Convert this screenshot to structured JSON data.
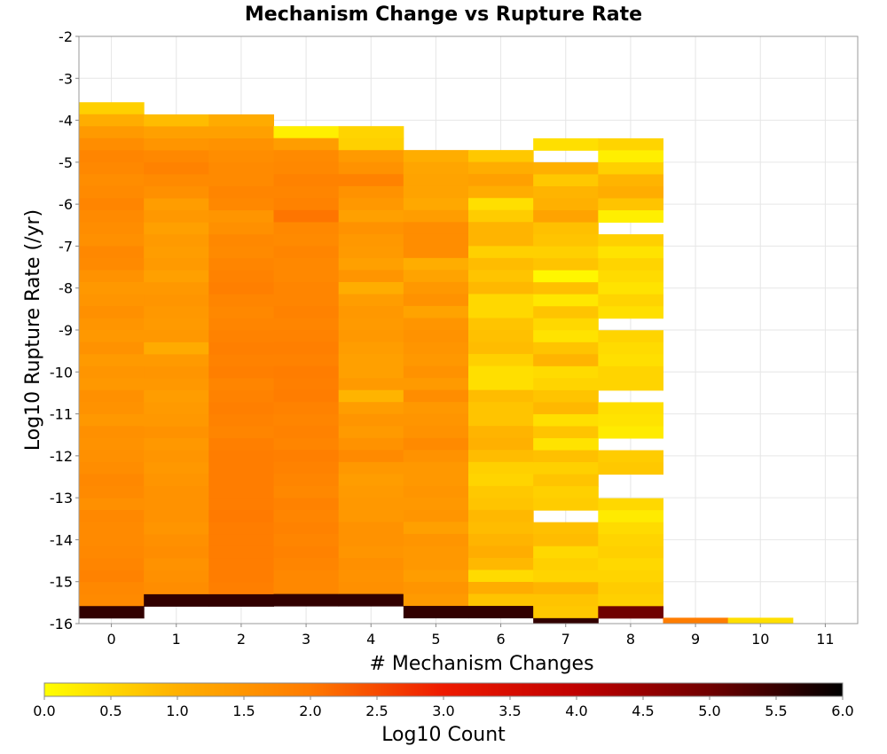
{
  "chart_data": {
    "type": "heatmap",
    "title": "Mechanism Change vs Rupture Rate",
    "xlabel": "# Mechanism Changes",
    "ylabel": "Log10 Rupture Rate (/yr)",
    "colorbar_label": "Log10 Count",
    "x_ticks": [
      "0",
      "1",
      "2",
      "3",
      "4",
      "5",
      "6",
      "7",
      "8",
      "9",
      "10",
      "11"
    ],
    "y_ticks": [
      "-2",
      "-3",
      "-4",
      "-5",
      "-6",
      "-7",
      "-8",
      "-9",
      "-10",
      "-11",
      "-12",
      "-13",
      "-14",
      "-15",
      "-16"
    ],
    "colorbar_ticks": [
      "0.0",
      "0.5",
      "1.0",
      "1.5",
      "2.0",
      "2.5",
      "3.0",
      "3.5",
      "4.0",
      "4.5",
      "5.0",
      "5.5",
      "6.0"
    ],
    "xlim": [
      -0.5,
      11.5
    ],
    "ylim": [
      -16,
      -2
    ],
    "color_range": [
      0,
      6
    ],
    "color_scale": [
      "#ffff00",
      "#ffb000",
      "#ff7a00",
      "#ee1a00",
      "#c00000",
      "#700000",
      "#000000"
    ],
    "grid": true,
    "y_bin_size": 0.286,
    "columns": [
      {
        "x": 0,
        "top": -3.57,
        "values": [
          0.6,
          1.05,
          1.4,
          1.65,
          1.8,
          1.75,
          1.65,
          1.7,
          1.8,
          1.7,
          1.65,
          1.6,
          1.75,
          1.7,
          1.55,
          1.45,
          1.5,
          1.6,
          1.5,
          1.45,
          1.55,
          1.4,
          1.5,
          1.45,
          1.6,
          1.55,
          1.45,
          1.6,
          1.55,
          1.6,
          1.65,
          1.75,
          1.7,
          1.6,
          1.75,
          1.7,
          1.7,
          1.75,
          1.8,
          1.85,
          1.75,
          1.7,
          5.55
        ]
      },
      {
        "x": 1,
        "top": -3.86,
        "values": [
          0.85,
          1.3,
          1.5,
          1.75,
          1.85,
          1.7,
          1.6,
          1.35,
          1.45,
          1.3,
          1.4,
          1.35,
          1.4,
          1.3,
          1.45,
          1.5,
          1.45,
          1.4,
          1.45,
          1.1,
          1.4,
          1.5,
          1.45,
          1.35,
          1.4,
          1.45,
          1.55,
          1.45,
          1.5,
          1.45,
          1.5,
          1.55,
          1.55,
          1.55,
          1.5,
          1.6,
          1.65,
          1.55,
          1.6,
          1.65,
          5.55
        ]
      },
      {
        "x": 2,
        "top": -3.86,
        "values": [
          1.1,
          1.3,
          1.55,
          1.65,
          1.7,
          1.7,
          1.8,
          1.75,
          1.5,
          1.6,
          1.75,
          1.7,
          1.8,
          1.85,
          1.9,
          1.8,
          1.75,
          1.8,
          1.85,
          1.9,
          1.85,
          1.9,
          1.8,
          1.85,
          1.9,
          1.85,
          1.8,
          1.9,
          1.95,
          1.95,
          1.95,
          1.95,
          1.95,
          2.0,
          1.95,
          1.95,
          1.95,
          1.95,
          1.95,
          1.9,
          5.55
        ]
      },
      {
        "x": 3,
        "top": -4.14,
        "values": [
          0.2,
          1.35,
          1.7,
          1.75,
          1.85,
          1.8,
          1.85,
          2.05,
          1.75,
          1.7,
          1.8,
          1.75,
          1.75,
          1.8,
          1.8,
          1.85,
          1.8,
          1.85,
          1.9,
          1.85,
          1.95,
          1.9,
          1.95,
          1.85,
          1.8,
          1.85,
          1.8,
          1.9,
          1.85,
          1.8,
          1.75,
          1.85,
          1.8,
          1.85,
          1.8,
          1.85,
          1.8,
          1.75,
          1.75,
          5.55
        ]
      },
      {
        "x": 4,
        "top": -4.14,
        "values": [
          0.55,
          0.6,
          1.4,
          1.55,
          1.85,
          1.55,
          1.45,
          1.3,
          1.55,
          1.45,
          1.4,
          1.3,
          1.5,
          1.05,
          1.35,
          1.45,
          1.4,
          1.45,
          1.35,
          1.3,
          1.3,
          1.4,
          0.95,
          1.35,
          1.5,
          1.4,
          1.55,
          1.7,
          1.45,
          1.35,
          1.4,
          1.45,
          1.45,
          1.55,
          1.55,
          1.5,
          1.6,
          1.55,
          1.6,
          5.55
        ]
      },
      {
        "x": 5,
        "top": -4.71,
        "values": [
          1.05,
          1.2,
          1.25,
          1.25,
          1.15,
          1.35,
          1.65,
          1.65,
          1.65,
          1.05,
          1.25,
          1.45,
          1.55,
          1.25,
          1.5,
          1.55,
          1.5,
          1.45,
          1.55,
          1.4,
          1.65,
          1.45,
          1.5,
          1.55,
          1.7,
          1.55,
          1.45,
          1.45,
          1.5,
          1.45,
          1.5,
          1.3,
          1.5,
          1.45,
          1.45,
          1.35,
          1.5,
          1.4,
          5.55
        ]
      },
      {
        "x": 6,
        "top": -4.71,
        "values": [
          0.7,
          1.05,
          1.3,
          1.05,
          0.4,
          0.65,
          0.95,
          0.95,
          0.6,
          0.85,
          0.75,
          0.9,
          0.5,
          0.5,
          0.75,
          0.8,
          0.85,
          0.6,
          0.4,
          0.4,
          0.85,
          0.75,
          0.75,
          0.95,
          1.0,
          0.85,
          0.6,
          0.55,
          0.7,
          0.75,
          0.9,
          0.85,
          0.95,
          1.05,
          0.9,
          0.45,
          1.05,
          0.75,
          5.55
        ]
      },
      {
        "x": 7,
        "top": -4.43,
        "values": [
          0.4,
          null,
          1.0,
          0.7,
          0.95,
          1.0,
          1.25,
          0.8,
          0.75,
          0.6,
          0.75,
          0.1,
          0.8,
          0.3,
          0.75,
          0.5,
          0.35,
          0.75,
          0.95,
          0.45,
          0.55,
          0.75,
          0.9,
          0.4,
          0.75,
          0.35,
          0.8,
          0.6,
          0.75,
          0.6,
          0.65,
          null,
          0.8,
          0.85,
          0.5,
          0.6,
          0.55,
          0.95,
          0.75,
          0.7,
          5.55
        ]
      },
      {
        "x": 8,
        "top": -4.43,
        "values": [
          0.55,
          0.2,
          0.6,
          0.95,
          1.05,
          0.75,
          0.2,
          null,
          0.6,
          0.35,
          0.55,
          0.45,
          0.35,
          0.55,
          0.4,
          null,
          0.55,
          0.45,
          0.4,
          0.55,
          0.55,
          null,
          0.4,
          0.35,
          0.25,
          null,
          0.65,
          0.7,
          null,
          null,
          0.5,
          0.25,
          0.45,
          0.55,
          0.6,
          0.5,
          0.55,
          0.65,
          0.6,
          5.0
        ]
      },
      {
        "x": 9,
        "top": -15.86,
        "values": [
          1.95
        ]
      },
      {
        "x": 10,
        "top": -15.86,
        "values": [
          0.4
        ]
      }
    ]
  }
}
